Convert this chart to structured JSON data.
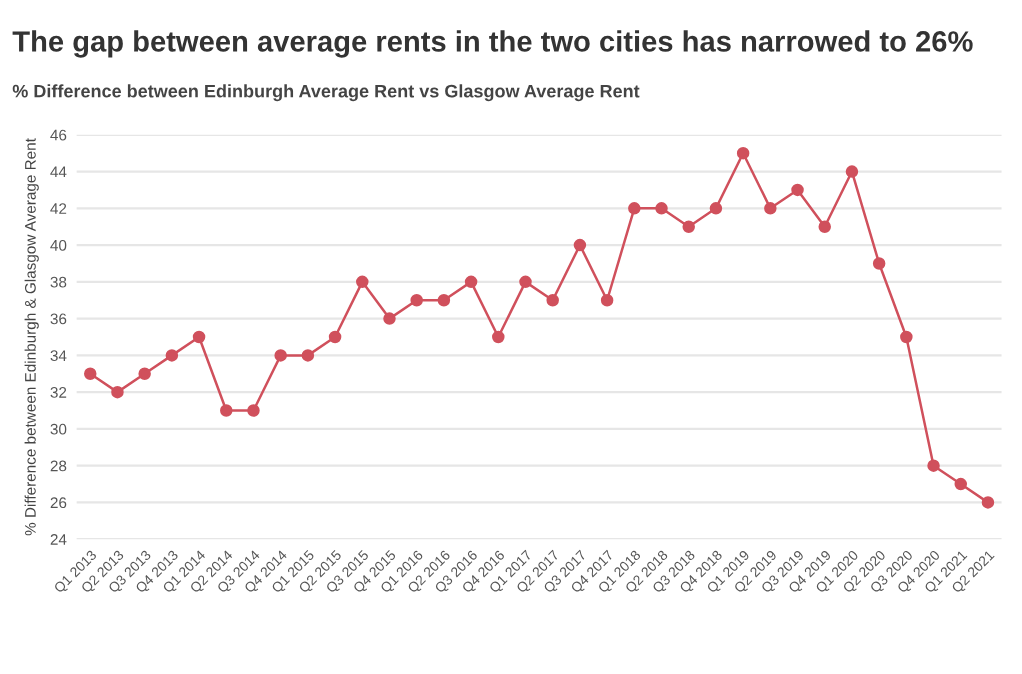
{
  "chart_data": {
    "type": "line",
    "title": "The gap between average rents in the two cities has narrowed to 26%",
    "subtitle": "% Difference between Edinburgh Average Rent vs Glasgow Average Rent",
    "ylabel": "% Difference between Edinburgh & Glasgow Average Rent",
    "categories": [
      "Q1 2013",
      "Q2 2013",
      "Q3 2013",
      "Q4 2013",
      "Q1 2014",
      "Q2 2014",
      "Q3 2014",
      "Q4 2014",
      "Q1 2015",
      "Q2 2015",
      "Q3 2015",
      "Q4 2015",
      "Q1 2016",
      "Q2 2016",
      "Q3 2016",
      "Q4 2016",
      "Q1 2017",
      "Q2 2017",
      "Q3 2017",
      "Q4 2017",
      "Q1 2018",
      "Q2 2018",
      "Q3 2018",
      "Q4 2018",
      "Q1 2019",
      "Q2 2019",
      "Q3 2019",
      "Q4 2019",
      "Q1 2020",
      "Q2 2020",
      "Q3 2020",
      "Q4 2020",
      "Q1 2021",
      "Q2 2021"
    ],
    "series": [
      {
        "color": "#d0505c",
        "values": [
          33,
          32,
          33,
          34,
          35,
          31,
          31,
          34,
          34,
          35,
          38,
          36,
          37,
          37,
          38,
          35,
          38,
          37,
          40,
          37,
          42,
          42,
          41,
          42,
          45,
          42,
          43,
          41,
          44,
          39,
          35,
          28,
          27,
          26
        ]
      }
    ],
    "ylim": [
      24,
      46
    ],
    "yticks": [
      24,
      26,
      28,
      30,
      32,
      34,
      36,
      38,
      40,
      42,
      44,
      46
    ],
    "grid": "y",
    "marker": "circle",
    "line_style": "solid",
    "legend": false
  }
}
